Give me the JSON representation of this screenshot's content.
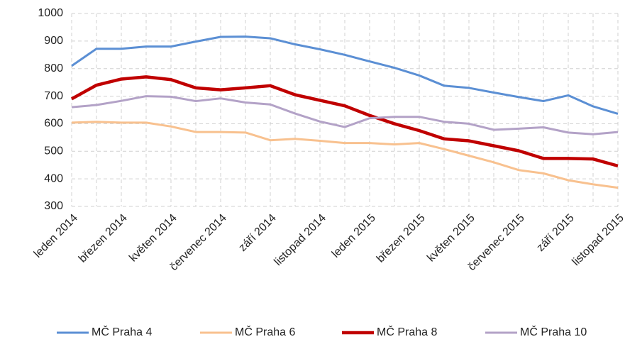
{
  "chart_data": {
    "type": "line",
    "categories": [
      "leden 2014",
      null,
      "březen 2014",
      null,
      "květen 2014",
      null,
      "červenec 2014",
      null,
      "září 2014",
      null,
      "listopad 2014",
      null,
      "leden 2015",
      null,
      "březen 2015",
      null,
      "květen 2015",
      null,
      "červenec 2015",
      null,
      "září 2015",
      null,
      "listopad 2015"
    ],
    "series": [
      {
        "name": "MČ Praha 4",
        "color": "#5b8fd4",
        "width": 3,
        "values": [
          810,
          872,
          872,
          880,
          880,
          898,
          915,
          916,
          910,
          888,
          870,
          850,
          826,
          803,
          775,
          738,
          730,
          713,
          697,
          682,
          703,
          663,
          636
        ]
      },
      {
        "name": "MČ Praha 6",
        "color": "#f8c18f",
        "width": 3,
        "values": [
          604,
          607,
          604,
          604,
          590,
          570,
          570,
          568,
          540,
          545,
          538,
          530,
          530,
          525,
          530,
          508,
          484,
          460,
          432,
          420,
          395,
          380,
          368
        ]
      },
      {
        "name": "MČ Praha 8",
        "color": "#c00000",
        "width": 4.5,
        "values": [
          690,
          740,
          762,
          770,
          760,
          730,
          723,
          730,
          738,
          705,
          685,
          665,
          630,
          600,
          575,
          545,
          538,
          520,
          502,
          474,
          474,
          472,
          447
        ]
      },
      {
        "name": "MČ Praha 10",
        "color": "#b3a2c7",
        "width": 3,
        "values": [
          660,
          668,
          683,
          700,
          698,
          682,
          692,
          677,
          670,
          637,
          608,
          588,
          620,
          625,
          625,
          607,
          600,
          578,
          582,
          587,
          568,
          562,
          570
        ]
      }
    ],
    "ylim": [
      300,
      1000
    ],
    "yticks": [
      300,
      400,
      500,
      600,
      700,
      800,
      900,
      1000
    ],
    "grid": true,
    "legend": "bottom"
  }
}
